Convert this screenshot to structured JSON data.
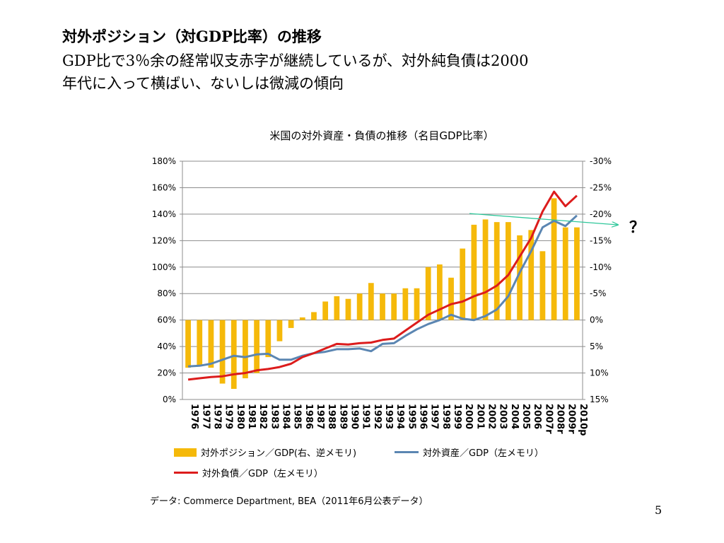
{
  "slide": {
    "title": "対外ポジション（対GDP比率）の推移",
    "subtitle_line1": "GDP比で3％余の経常収支赤字が継続しているが、対外純負債は2000",
    "subtitle_line2": "年代に入って横ばい、ないしは微減の傾向",
    "question_mark": "？",
    "source": "データ: Commerce Department, BEA（2011年6月公表データ）",
    "page_number": "5"
  },
  "colors": {
    "bars": "#F5B90A",
    "assets_line": "#5B86B2",
    "liabilities_line": "#DC1C1C",
    "trend_arrow": "#2EC79A",
    "gridline": "#8C8C8C"
  },
  "chart_data": {
    "type": "bar+line",
    "title": "米国の対外資産・負債の推移（名目GDP比率）",
    "categories": [
      "1976",
      "1977",
      "1978",
      "1979",
      "1980",
      "1981",
      "1982",
      "1983",
      "1984",
      "1985",
      "1986",
      "1987",
      "1988",
      "1989",
      "1990",
      "1991",
      "1992",
      "1993",
      "1994",
      "1995",
      "1996",
      "1997",
      "1998",
      "1999",
      "2000",
      "2001",
      "2002",
      "2003",
      "2004",
      "2005",
      "2006",
      "2007r",
      "2008r",
      "2009r",
      "2010p"
    ],
    "left_axis": {
      "ylim": [
        0,
        180
      ],
      "ticks": [
        "0%",
        "20%",
        "40%",
        "60%",
        "80%",
        "100%",
        "120%",
        "140%",
        "160%",
        "180%"
      ]
    },
    "right_axis": {
      "ylim": [
        15,
        -30
      ],
      "inverted": true,
      "ticks": [
        "15%",
        "10%",
        "5%",
        "0%",
        "-5%",
        "-10%",
        "-15%",
        "-20%",
        "-25%",
        "-30%"
      ]
    },
    "series": [
      {
        "name": "対外ポジション／GDP(右、逆メモリ)",
        "type": "bar",
        "axis": "right",
        "values": [
          9.0,
          8.5,
          9.0,
          12.0,
          13.0,
          11.0,
          10.0,
          7.0,
          4.0,
          1.5,
          -0.5,
          -1.5,
          -3.5,
          -4.5,
          -4.0,
          -5.0,
          -7.0,
          -5.0,
          -5.0,
          -6.0,
          -6.0,
          -10.0,
          -10.5,
          -8.0,
          -13.5,
          -18.0,
          -19.0,
          -18.5,
          -18.5,
          -16.0,
          -17.0,
          -13.0,
          -23.0,
          -17.5,
          -17.5
        ]
      },
      {
        "name": "対外資産／GDP（左メモリ）",
        "type": "line",
        "axis": "left",
        "values": [
          25,
          25.5,
          27,
          30,
          33,
          32,
          34,
          34.5,
          30,
          30,
          33,
          35,
          36,
          38,
          38,
          38.5,
          36.5,
          42,
          42.5,
          48,
          53,
          57,
          60,
          64,
          61,
          60,
          63,
          68,
          78,
          96,
          112,
          130,
          135,
          131,
          139
        ]
      },
      {
        "name": "対外負債／GDP（左メモリ）",
        "type": "line",
        "axis": "left",
        "values": [
          15,
          16,
          17,
          17.5,
          19,
          20,
          22,
          23,
          24.5,
          27,
          32,
          35,
          38.5,
          42,
          41.5,
          42.5,
          43,
          45,
          46,
          52,
          58,
          64,
          68,
          72,
          74,
          78,
          81,
          86,
          94,
          108,
          122,
          142,
          157,
          146,
          154
        ]
      }
    ],
    "annotation": "？"
  }
}
